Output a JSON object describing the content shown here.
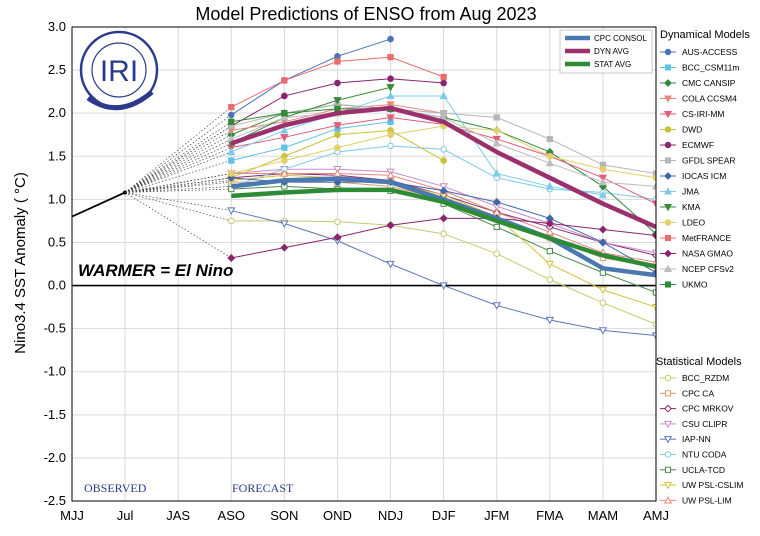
{
  "chart_data": {
    "type": "line",
    "title": "Model Predictions of ENSO from Aug 2023",
    "ylabel": "Nino3.4 SST Anomaly ( °C)",
    "xlabel": "",
    "ylim": [
      -2.5,
      3.0
    ],
    "yticks": [
      "3.0",
      "2.5",
      "2.0",
      "1.5",
      "1.0",
      "0.5",
      "0.0",
      "-0.5",
      "-1.0",
      "-1.5",
      "-2.0",
      "-2.5"
    ],
    "categories": [
      "MJJ",
      "Jul",
      "JAS",
      "ASO",
      "SON",
      "OND",
      "NDJ",
      "DJF",
      "JFM",
      "FMA",
      "MAM",
      "AMJ"
    ],
    "grid": true,
    "logo_text": "IRI",
    "annotation_warmer": "WARMER = El Nino",
    "annotation_observed": "OBSERVED",
    "annotation_forecast": "FORECAST",
    "observed": [
      0.8,
      1.08
    ],
    "consensus_legend_position": "top-right inside plot",
    "consensus": [
      {
        "name": "CPC CONSOL",
        "color": "#4a78b0",
        "values": [
          null,
          null,
          null,
          1.15,
          1.22,
          1.24,
          1.2,
          1.0,
          0.78,
          0.55,
          0.2,
          0.12
        ]
      },
      {
        "name": "DYN AVG",
        "color": "#9c2f6d",
        "values": [
          null,
          null,
          null,
          1.65,
          1.86,
          2.0,
          2.06,
          1.9,
          1.55,
          1.25,
          0.95,
          0.68
        ]
      },
      {
        "name": "STAT AVG",
        "color": "#2e8b35",
        "values": [
          null,
          null,
          null,
          1.04,
          1.08,
          1.11,
          1.11,
          0.97,
          0.75,
          0.55,
          0.35,
          0.22
        ]
      }
    ],
    "dynamical_header": "Dynamical Models",
    "statistical_header": "Statistical Models",
    "dynamical": [
      {
        "name": "AUS-ACCESS",
        "color": "#4a73b8",
        "marker": "circle",
        "values": [
          null,
          null,
          null,
          1.98,
          2.38,
          2.66,
          2.86,
          null,
          null,
          null,
          null,
          null
        ]
      },
      {
        "name": "BCC_CSM11m",
        "color": "#5fc3e8",
        "marker": "square",
        "values": [
          null,
          null,
          null,
          1.45,
          1.6,
          1.82,
          1.9,
          null,
          null,
          null,
          null,
          null
        ]
      },
      {
        "name": "CMC CANSIP",
        "color": "#2f8a3a",
        "marker": "diamond",
        "values": [
          null,
          null,
          null,
          1.75,
          2.0,
          2.1,
          2.05,
          1.95,
          1.8,
          1.55,
          1.15,
          0.6
        ]
      },
      {
        "name": "COLA CCSM4",
        "color": "#e8887c",
        "marker": "triangle-down",
        "values": [
          null,
          null,
          null,
          1.8,
          1.9,
          2.05,
          2.1,
          2.0,
          null,
          null,
          null,
          null
        ]
      },
      {
        "name": "CS-IRI-MM",
        "color": "#e05c7a",
        "marker": "triangle-down",
        "values": [
          null,
          null,
          null,
          1.6,
          1.72,
          1.86,
          1.95,
          1.87,
          1.7,
          1.5,
          1.25,
          0.95
        ]
      },
      {
        "name": "DWD",
        "color": "#c9c23a",
        "marker": "circle",
        "values": [
          null,
          null,
          null,
          1.25,
          1.5,
          1.75,
          1.8,
          1.45,
          null,
          null,
          null,
          null
        ]
      },
      {
        "name": "ECMWF",
        "color": "#8a2470",
        "marker": "circle",
        "values": [
          null,
          null,
          null,
          1.85,
          2.2,
          2.35,
          2.4,
          2.35,
          null,
          null,
          null,
          null
        ]
      },
      {
        "name": "GFDL SPEAR",
        "color": "#b6b6b6",
        "marker": "square",
        "values": [
          null,
          null,
          null,
          1.85,
          2.0,
          2.1,
          2.05,
          2.0,
          1.95,
          1.7,
          1.4,
          1.3
        ]
      },
      {
        "name": "IOCAS ICM",
        "color": "#3f68a8",
        "marker": "diamond",
        "values": [
          null,
          null,
          null,
          1.25,
          1.2,
          1.2,
          1.2,
          1.1,
          0.97,
          0.78,
          0.5,
          0.15
        ]
      },
      {
        "name": "JMA",
        "color": "#7ecbe8",
        "marker": "triangle-up",
        "values": [
          null,
          null,
          null,
          1.55,
          1.8,
          2.0,
          2.2,
          2.2,
          1.3,
          1.15,
          1.05,
          null
        ]
      },
      {
        "name": "KMA",
        "color": "#3a8a3a",
        "marker": "triangle-down",
        "values": [
          null,
          null,
          null,
          1.65,
          1.95,
          2.15,
          2.3,
          null,
          null,
          null,
          null,
          null
        ]
      },
      {
        "name": "LDEO",
        "color": "#e3d06a",
        "marker": "circle",
        "values": [
          null,
          null,
          null,
          1.3,
          1.45,
          1.6,
          1.75,
          1.85,
          1.8,
          1.5,
          1.35,
          1.25
        ]
      },
      {
        "name": "MetFRANCE",
        "color": "#e86d6d",
        "marker": "square",
        "values": [
          null,
          null,
          null,
          2.07,
          2.38,
          2.6,
          2.65,
          2.42,
          null,
          null,
          null,
          null
        ]
      },
      {
        "name": "NASA GMAO",
        "color": "#8a2470",
        "marker": "diamond",
        "values": [
          null,
          null,
          null,
          0.32,
          0.44,
          0.56,
          0.7,
          0.78,
          0.78,
          0.72,
          0.65,
          0.58
        ]
      },
      {
        "name": "NCEP CFSv2",
        "color": "#bdbdbd",
        "marker": "triangle-up",
        "values": [
          null,
          null,
          null,
          1.7,
          1.95,
          2.0,
          2.05,
          1.95,
          1.65,
          1.42,
          1.2,
          1.15
        ]
      },
      {
        "name": "UKMO",
        "color": "#2e8b35",
        "marker": "square",
        "values": [
          null,
          null,
          null,
          1.9,
          2.0,
          2.05,
          2.05,
          null,
          null,
          null,
          null,
          null
        ]
      }
    ],
    "statistical": [
      {
        "name": "BCC_RZDM",
        "color": "#c8c86e",
        "marker": "circle",
        "values": [
          null,
          null,
          null,
          0.75,
          0.75,
          0.74,
          0.7,
          0.6,
          0.37,
          0.07,
          -0.2,
          -0.45
        ]
      },
      {
        "name": "CPC CA",
        "color": "#e09a6a",
        "marker": "square",
        "values": [
          null,
          null,
          null,
          1.2,
          1.2,
          1.2,
          1.15,
          1.0,
          0.78,
          0.55,
          0.32,
          0.22
        ]
      },
      {
        "name": "CPC MRKOV",
        "color": "#8a2470",
        "marker": "diamond",
        "values": [
          null,
          null,
          null,
          1.25,
          1.3,
          1.28,
          1.22,
          1.05,
          0.85,
          0.68,
          0.5,
          0.35
        ]
      },
      {
        "name": "CSU CLIPR",
        "color": "#c78dc9",
        "marker": "triangle-down",
        "values": [
          null,
          null,
          null,
          1.3,
          1.35,
          1.35,
          1.32,
          1.15,
          0.92,
          0.72,
          0.5,
          0.38
        ]
      },
      {
        "name": "IAP-NN",
        "color": "#5b78b8",
        "marker": "triangle-down",
        "values": [
          null,
          null,
          null,
          0.87,
          0.72,
          0.52,
          0.25,
          0.0,
          -0.23,
          -0.4,
          -0.52,
          -0.58
        ]
      },
      {
        "name": "NTU CODA",
        "color": "#7ecbe8",
        "marker": "circle",
        "values": [
          null,
          null,
          null,
          1.15,
          1.35,
          1.55,
          1.62,
          1.58,
          1.25,
          1.12,
          1.08,
          1.0
        ]
      },
      {
        "name": "UCLA-TCD",
        "color": "#4a8a4a",
        "marker": "square",
        "values": [
          null,
          null,
          null,
          1.12,
          1.15,
          1.12,
          1.1,
          0.95,
          0.68,
          0.4,
          0.15,
          -0.08
        ]
      },
      {
        "name": "UW PSL-CSLIM",
        "color": "#d6c23a",
        "marker": "triangle-down",
        "values": [
          null,
          null,
          null,
          1.22,
          1.28,
          1.25,
          1.2,
          1.05,
          0.8,
          0.25,
          -0.05,
          -0.25
        ]
      },
      {
        "name": "UW PSL-LIM",
        "color": "#e8887c",
        "marker": "triangle-up",
        "values": [
          null,
          null,
          null,
          1.3,
          1.3,
          1.3,
          1.28,
          1.1,
          0.85,
          0.62,
          0.38,
          0.27
        ]
      }
    ]
  }
}
